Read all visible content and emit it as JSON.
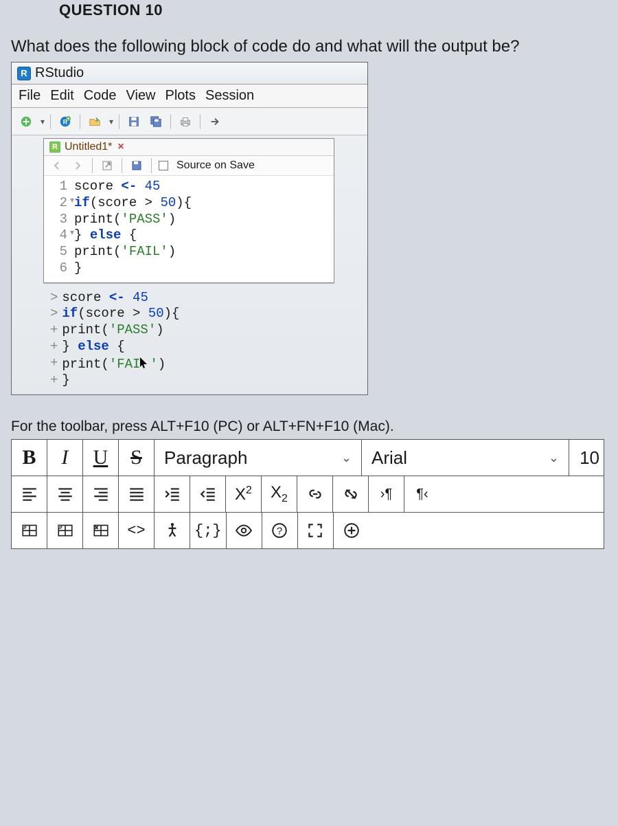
{
  "question": {
    "header": "QUESTION 10",
    "text": "What does the following block of code do and what will the output be?"
  },
  "rstudio": {
    "title": "RStudio",
    "menu": [
      "File",
      "Edit",
      "Code",
      "View",
      "Plots",
      "Session"
    ],
    "tab": {
      "name": "Untitled1*",
      "source_on_save": "Source on Save"
    },
    "code": {
      "lines": [
        {
          "n": "1",
          "parts": [
            {
              "t": "score ",
              "c": ""
            },
            {
              "t": "<-",
              "c": "kw"
            },
            {
              "t": " ",
              "c": ""
            },
            {
              "t": "45",
              "c": "num"
            }
          ]
        },
        {
          "n": "2",
          "fold": true,
          "parts": [
            {
              "t": "if",
              "c": "kw"
            },
            {
              "t": "(score > ",
              "c": ""
            },
            {
              "t": "50",
              "c": "num"
            },
            {
              "t": "){",
              "c": ""
            }
          ]
        },
        {
          "n": "3",
          "parts": [
            {
              "t": "  print(",
              "c": ""
            },
            {
              "t": "'PASS'",
              "c": "str"
            },
            {
              "t": ")",
              "c": ""
            }
          ]
        },
        {
          "n": "4",
          "fold": true,
          "parts": [
            {
              "t": "} ",
              "c": ""
            },
            {
              "t": "else",
              "c": "kw"
            },
            {
              "t": " {",
              "c": ""
            }
          ]
        },
        {
          "n": "5",
          "parts": [
            {
              "t": "  print(",
              "c": ""
            },
            {
              "t": "'FAIL'",
              "c": "str"
            },
            {
              "t": ")",
              "c": ""
            }
          ]
        },
        {
          "n": "6",
          "parts": [
            {
              "t": "}",
              "c": ""
            }
          ]
        }
      ]
    },
    "console": [
      {
        "p": ">",
        "parts": [
          {
            "t": "score ",
            "c": ""
          },
          {
            "t": "<-",
            "c": "kw"
          },
          {
            "t": " ",
            "c": ""
          },
          {
            "t": "45",
            "c": "num"
          }
        ]
      },
      {
        "p": ">",
        "parts": [
          {
            "t": "if",
            "c": "kw"
          },
          {
            "t": "(score > ",
            "c": ""
          },
          {
            "t": "50",
            "c": "num"
          },
          {
            "t": "){",
            "c": ""
          }
        ]
      },
      {
        "p": "+",
        "parts": [
          {
            "t": "  print(",
            "c": ""
          },
          {
            "t": "'PASS'",
            "c": "str"
          },
          {
            "t": ")",
            "c": ""
          }
        ]
      },
      {
        "p": "+",
        "parts": [
          {
            "t": "} ",
            "c": ""
          },
          {
            "t": "else",
            "c": "kw"
          },
          {
            "t": " {",
            "c": ""
          }
        ]
      },
      {
        "p": "+",
        "parts": [
          {
            "t": "  print(",
            "c": ""
          },
          {
            "t": "'FAI",
            "c": "str"
          },
          {
            "cursor": true
          },
          {
            "t": "'",
            "c": "str"
          },
          {
            "t": ")",
            "c": ""
          }
        ]
      },
      {
        "p": "+",
        "parts": [
          {
            "t": "}",
            "c": ""
          }
        ]
      }
    ]
  },
  "toolbar_hint": "For the toolbar, press ALT+F10 (PC) or ALT+FN+F10 (Mac).",
  "rte": {
    "paragraph": "Paragraph",
    "font": "Arial",
    "size": "10"
  },
  "colors": {
    "page_bg": "#d4dae0",
    "keyword": "#0a3db3",
    "string": "#2a7d2a",
    "tab_name": "#6a3a00",
    "r_icon_bg": "#207cca"
  }
}
